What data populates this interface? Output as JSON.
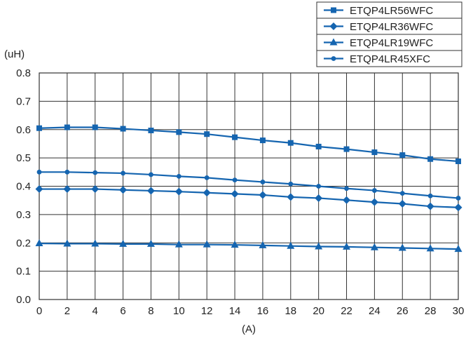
{
  "chart_data": {
    "type": "line",
    "title": "",
    "y_unit_label": "(uH)",
    "xlabel": "(A)",
    "x": [
      0,
      2,
      4,
      6,
      8,
      10,
      12,
      14,
      16,
      18,
      20,
      22,
      24,
      26,
      28,
      30
    ],
    "xlim": [
      0,
      30
    ],
    "ylim": [
      0,
      0.8
    ],
    "x_ticks": [
      0,
      2,
      4,
      6,
      8,
      10,
      12,
      14,
      16,
      18,
      20,
      22,
      24,
      26,
      28,
      30
    ],
    "y_ticks": [
      "0.0",
      "0.1",
      "0.2",
      "0.3",
      "0.4",
      "0.5",
      "0.6",
      "0.7",
      "0.8"
    ],
    "grid": true,
    "legend_position": "top-right",
    "series": [
      {
        "name": "ETQP4LR56WFC",
        "marker": "square",
        "values": [
          0.605,
          0.608,
          0.608,
          0.603,
          0.597,
          0.591,
          0.584,
          0.573,
          0.562,
          0.553,
          0.54,
          0.531,
          0.52,
          0.51,
          0.496,
          0.488
        ]
      },
      {
        "name": "ETQP4LR36WFC",
        "marker": "diamond",
        "values": [
          0.39,
          0.39,
          0.39,
          0.387,
          0.384,
          0.381,
          0.377,
          0.373,
          0.369,
          0.362,
          0.358,
          0.351,
          0.344,
          0.338,
          0.329,
          0.325
        ]
      },
      {
        "name": "ETQP4LR19WFC",
        "marker": "triangle",
        "values": [
          0.198,
          0.197,
          0.197,
          0.196,
          0.196,
          0.194,
          0.194,
          0.193,
          0.191,
          0.189,
          0.187,
          0.186,
          0.184,
          0.182,
          0.18,
          0.178
        ]
      },
      {
        "name": "ETQP4LR45XFC",
        "marker": "circle",
        "values": [
          0.45,
          0.45,
          0.448,
          0.446,
          0.441,
          0.435,
          0.43,
          0.422,
          0.415,
          0.408,
          0.4,
          0.392,
          0.385,
          0.375,
          0.366,
          0.358
        ]
      }
    ],
    "colors": {
      "series_line": "#1565b0",
      "grid": "#333333",
      "text": "#222222"
    }
  }
}
